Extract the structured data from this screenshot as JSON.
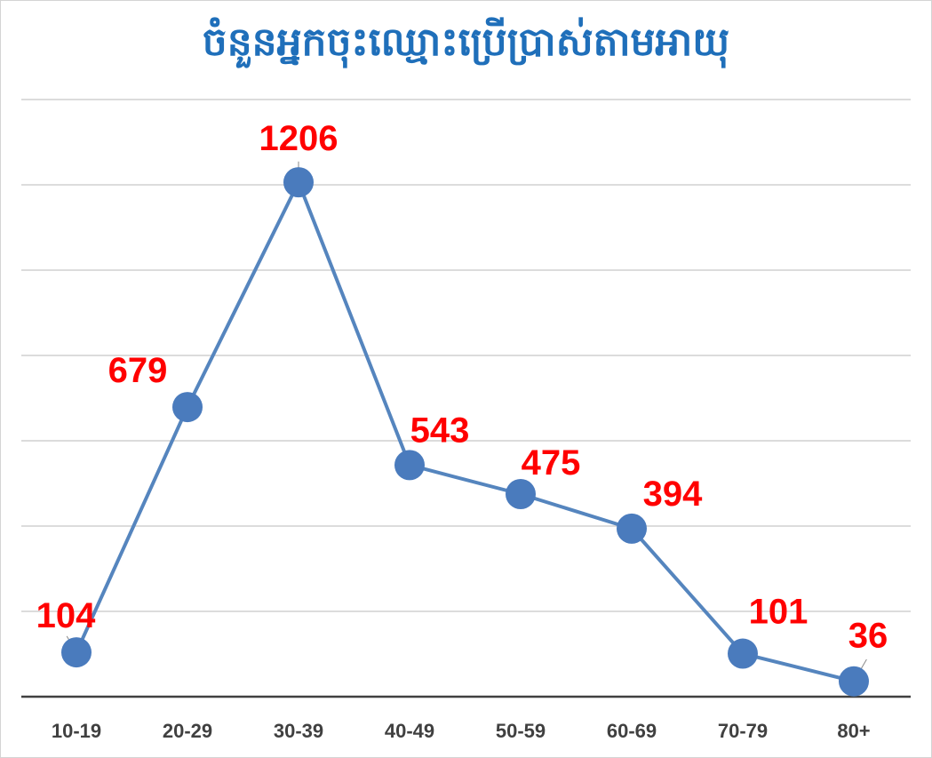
{
  "chart_data": {
    "type": "line",
    "title": "ចំនួនអ្នកចុះឈ្មោះប្រើប្រាស់តាមអាយុ",
    "categories": [
      "10-19",
      "20-29",
      "30-39",
      "40-49",
      "50-59",
      "60-69",
      "70-79",
      "80+"
    ],
    "series": [
      {
        "values": [
          104,
          679,
          1206,
          543,
          475,
          394,
          101,
          36
        ]
      }
    ],
    "ylim": [
      0,
      1400
    ],
    "grid": true,
    "legend": "none",
    "colors": {
      "title": "#1f6fba",
      "line": "#5585be",
      "marker": "#4a7bbd",
      "data_label": "#ff0000",
      "gridline": "#d0d0d0",
      "axis": "#404040",
      "tick_label": "#404040"
    }
  }
}
